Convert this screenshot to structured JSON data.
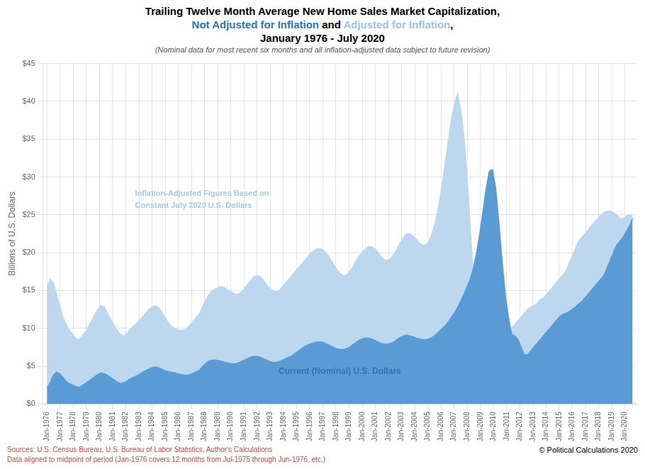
{
  "chart_data": {
    "type": "area",
    "title": [
      [
        {
          "text": "Trailing Twelve Month Average New Home Sales Market Capitalization,",
          "color": "#000000"
        }
      ],
      [
        {
          "text": "Not Adjusted for Inflation",
          "color": "#2E75B6"
        },
        {
          "text": " and ",
          "color": "#000000"
        },
        {
          "text": "Adjusted for Inflation",
          "color": "#9DC3E6"
        },
        {
          "text": ",",
          "color": "#000000"
        }
      ],
      [
        {
          "text": "January 1976 - July 2020",
          "color": "#000000"
        }
      ]
    ],
    "subtitle": {
      "text": "(Nominal data for most recent six months and all inflation-adjusted data subject to future revision)",
      "color": "#595959"
    },
    "y_label": "Billions of U.S. Dollars",
    "x": [
      1976.0,
      1976.2423,
      1976.4846,
      1976.7269,
      1976.9692,
      1977.2115,
      1977.4538,
      1977.6961,
      1977.9384,
      1978.1807,
      1978.423,
      1978.6653,
      1978.9076,
      1979.1499,
      1979.3922,
      1979.6345,
      1979.8768,
      1980.1191,
      1980.3614,
      1980.6037,
      1980.846,
      1981.0883,
      1981.3306,
      1981.5729,
      1981.8152,
      1982.0575,
      1982.2998,
      1982.5421,
      1982.7844,
      1983.0267,
      1983.269,
      1983.5113,
      1983.7536,
      1983.9959,
      1984.2382,
      1984.4805,
      1984.7228,
      1984.9651,
      1985.2074,
      1985.4497,
      1985.692,
      1985.9343,
      1986.1766,
      1986.4189,
      1986.6612,
      1986.9035,
      1987.1458,
      1987.3881,
      1987.6304,
      1987.8727,
      1988.115,
      1988.3573,
      1988.5996,
      1988.8419,
      1989.0842,
      1989.3265,
      1989.5688,
      1989.8111,
      1990.0534,
      1990.2957,
      1990.538,
      1990.7803,
      1991.0226,
      1991.2649,
      1991.5072,
      1991.7495,
      1991.9918,
      1992.2341,
      1992.4764,
      1992.7188,
      1992.9611,
      1993.2034,
      1993.4457,
      1993.688,
      1993.9303,
      1994.1726,
      1994.4149,
      1994.6572,
      1994.8995,
      1995.1418,
      1995.3841,
      1995.6264,
      1995.8687,
      1996.111,
      1996.3533,
      1996.5956,
      1996.8379,
      1997.0802,
      1997.3225,
      1997.5648,
      1997.8071,
      1998.0494,
      1998.2917,
      1998.534,
      1998.7763,
      1999.0186,
      1999.2609,
      1999.5032,
      1999.7455,
      1999.9878,
      2000.2301,
      2000.4724,
      2000.7147,
      2000.957,
      2001.1993,
      2001.4416,
      2001.6839,
      2001.9262,
      2002.1685,
      2002.4108,
      2002.6531,
      2002.8954,
      2003.1377,
      2003.38,
      2003.6223,
      2003.8646,
      2004.1069,
      2004.3492,
      2004.5915,
      2004.8338,
      2005.0761,
      2005.3184,
      2005.5607,
      2005.803,
      2006.0453,
      2006.2876,
      2006.5299,
      2006.7722,
      2007.0145,
      2007.2568,
      2007.4991,
      2007.7414,
      2007.9837,
      2008.226,
      2008.4683,
      2008.7106,
      2008.9529,
      2009.1952,
      2009.4375,
      2009.6798,
      2009.9221,
      2010.1644,
      2010.4067,
      2010.649,
      2010.8913,
      2011.1336,
      2011.3759,
      2011.6182,
      2011.8605,
      2012.1028,
      2012.3451,
      2012.5874,
      2012.8297,
      2013.072,
      2013.3143,
      2013.5566,
      2013.7989,
      2014.0412,
      2014.2835,
      2014.5258,
      2014.7681,
      2015.0104,
      2015.2527,
      2015.495,
      2015.7373,
      2015.9796,
      2016.2219,
      2016.4642,
      2016.7065,
      2016.9488,
      2017.1911,
      2017.4334,
      2017.6757,
      2017.918,
      2018.1603,
      2018.4026,
      2018.6449,
      2018.8872,
      2019.1295,
      2019.3718,
      2019.6141,
      2019.8564,
      2020.0987,
      2020.341,
      2020.5833
    ],
    "series": [
      {
        "color": "#BDD7EE",
        "values": [
          15.5,
          16.5,
          16.0,
          14.5,
          13.0,
          11.5,
          10.5,
          9.8,
          9.2,
          8.7,
          8.5,
          9.0,
          9.5,
          10.2,
          11.0,
          11.8,
          12.5,
          13.0,
          12.8,
          12.0,
          11.2,
          10.5,
          9.8,
          9.2,
          9.0,
          9.2,
          9.8,
          10.2,
          10.6,
          11.0,
          11.5,
          12.0,
          12.5,
          12.8,
          13.0,
          12.8,
          12.2,
          11.5,
          10.8,
          10.3,
          10.0,
          9.8,
          9.7,
          9.8,
          10.0,
          10.5,
          11.0,
          11.5,
          12.0,
          13.0,
          13.8,
          14.5,
          15.0,
          15.2,
          15.5,
          15.5,
          15.3,
          15.0,
          14.8,
          14.5,
          14.5,
          14.8,
          15.2,
          15.8,
          16.3,
          16.8,
          17.0,
          16.8,
          16.3,
          15.8,
          15.3,
          15.0,
          14.8,
          15.0,
          15.5,
          16.0,
          16.5,
          17.0,
          17.5,
          18.0,
          18.5,
          19.0,
          19.5,
          20.0,
          20.3,
          20.5,
          20.5,
          20.3,
          19.8,
          19.2,
          18.5,
          17.8,
          17.3,
          17.0,
          17.0,
          17.5,
          18.0,
          18.8,
          19.5,
          20.0,
          20.5,
          20.8,
          20.8,
          20.5,
          20.0,
          19.5,
          19.0,
          19.0,
          19.2,
          19.8,
          20.5,
          21.3,
          22.0,
          22.5,
          22.5,
          22.2,
          21.8,
          21.3,
          21.0,
          21.0,
          21.5,
          22.5,
          24.0,
          26.0,
          28.5,
          31.5,
          34.5,
          37.5,
          39.5,
          41.0,
          39.0,
          35.5,
          30.0,
          23.5,
          16.5,
          13.5,
          11.5,
          10.0,
          8.5,
          7.5,
          7.0,
          7.2,
          7.8,
          8.3,
          9.0,
          9.5,
          10.0,
          10.5,
          11.0,
          11.5,
          12.0,
          12.5,
          12.8,
          13.0,
          13.3,
          13.8,
          14.0,
          14.5,
          15.0,
          15.5,
          16.0,
          16.5,
          17.0,
          17.5,
          18.5,
          19.5,
          20.5,
          21.5,
          22.0,
          22.5,
          23.0,
          23.5,
          24.0,
          24.5,
          25.0,
          25.3,
          25.5,
          25.5,
          25.3,
          25.0,
          24.5,
          24.5,
          24.8,
          25.0,
          25.0
        ]
      },
      {
        "color": "#5B9BD5",
        "values": [
          2.1,
          2.8,
          3.8,
          4.2,
          4.0,
          3.5,
          3.0,
          2.7,
          2.5,
          2.3,
          2.2,
          2.4,
          2.7,
          3.0,
          3.3,
          3.6,
          3.9,
          4.1,
          4.0,
          3.8,
          3.5,
          3.2,
          2.9,
          2.7,
          2.8,
          3.0,
          3.3,
          3.5,
          3.7,
          3.9,
          4.2,
          4.4,
          4.6,
          4.8,
          4.9,
          4.8,
          4.6,
          4.4,
          4.3,
          4.2,
          4.1,
          4.0,
          3.9,
          3.8,
          3.8,
          3.9,
          4.1,
          4.3,
          4.5,
          5.0,
          5.4,
          5.7,
          5.8,
          5.8,
          5.7,
          5.6,
          5.5,
          5.4,
          5.3,
          5.3,
          5.4,
          5.6,
          5.8,
          6.0,
          6.2,
          6.3,
          6.3,
          6.2,
          6.0,
          5.8,
          5.6,
          5.5,
          5.5,
          5.6,
          5.8,
          6.0,
          6.2,
          6.4,
          6.7,
          7.0,
          7.3,
          7.6,
          7.8,
          8.0,
          8.1,
          8.2,
          8.2,
          8.1,
          7.9,
          7.7,
          7.5,
          7.3,
          7.2,
          7.2,
          7.3,
          7.5,
          7.8,
          8.1,
          8.4,
          8.6,
          8.7,
          8.7,
          8.6,
          8.4,
          8.2,
          8.0,
          7.9,
          7.9,
          8.0,
          8.2,
          8.5,
          8.8,
          9.0,
          9.1,
          9.0,
          8.9,
          8.7,
          8.6,
          8.5,
          8.5,
          8.6,
          8.8,
          9.1,
          9.5,
          9.9,
          10.3,
          10.8,
          11.4,
          12.0,
          12.8,
          13.6,
          14.5,
          15.5,
          16.5,
          18.0,
          20.0,
          22.5,
          25.5,
          28.5,
          30.8,
          31.0,
          28.5,
          24.0,
          19.0,
          14.5,
          11.5,
          9.2,
          9.0,
          8.5,
          7.5,
          6.5,
          6.5,
          7.0,
          7.5,
          8.0,
          8.5,
          9.0,
          9.5,
          10.0,
          10.5,
          11.0,
          11.5,
          11.8,
          12.0,
          12.2,
          12.5,
          12.8,
          13.2,
          13.5,
          14.0,
          14.5,
          15.0,
          15.5,
          16.0,
          16.5,
          17.0,
          18.0,
          19.0,
          20.0,
          21.0,
          21.5,
          22.0,
          22.8,
          23.5,
          24.5
        ]
      }
    ],
    "annotations": [
      {
        "text": "Inflation-Adjusted Figures Based on\nConstant July 2020 U.S. Dollars",
        "color": "#A8C8E8"
      },
      {
        "text": "Current (Nominal) U.S. Dollars",
        "color": "#2E75B6"
      }
    ],
    "xlim": [
      1975.7,
      2020.8833
    ],
    "xticks": [
      {
        "value": 1976,
        "label": "Jan-1976"
      },
      {
        "value": 1977,
        "label": "Jan-1977"
      },
      {
        "value": 1978,
        "label": "Jan-1978"
      },
      {
        "value": 1979,
        "label": "Jan-1979"
      },
      {
        "value": 1980,
        "label": "Jan-1980"
      },
      {
        "value": 1981,
        "label": "Jan-1981"
      },
      {
        "value": 1982,
        "label": "Jan-1982"
      },
      {
        "value": 1983,
        "label": "Jan-1983"
      },
      {
        "value": 1984,
        "label": "Jan-1984"
      },
      {
        "value": 1985,
        "label": "Jan-1985"
      },
      {
        "value": 1986,
        "label": "Jan-1986"
      },
      {
        "value": 1987,
        "label": "Jan-1987"
      },
      {
        "value": 1988,
        "label": "Jan-1988"
      },
      {
        "value": 1989,
        "label": "Jan-1989"
      },
      {
        "value": 1990,
        "label": "Jan-1990"
      },
      {
        "value": 1991,
        "label": "Jan-1991"
      },
      {
        "value": 1992,
        "label": "Jan-1992"
      },
      {
        "value": 1993,
        "label": "Jan-1993"
      },
      {
        "value": 1994,
        "label": "Jan-1994"
      },
      {
        "value": 1995,
        "label": "Jan-1995"
      },
      {
        "value": 1996,
        "label": "Jan-1996"
      },
      {
        "value": 1997,
        "label": "Jan-1997"
      },
      {
        "value": 1998,
        "label": "Jan-1998"
      },
      {
        "value": 1999,
        "label": "Jan-1999"
      },
      {
        "value": 2000,
        "label": "Jan-2000"
      },
      {
        "value": 2001,
        "label": "Jan-2001"
      },
      {
        "value": 2002,
        "label": "Jan-2002"
      },
      {
        "value": 2003,
        "label": "Jan-2003"
      },
      {
        "value": 2004,
        "label": "Jan-2004"
      },
      {
        "value": 2005,
        "label": "Jan-2005"
      },
      {
        "value": 2006,
        "label": "Jan-2006"
      },
      {
        "value": 2007,
        "label": "Jan-2007"
      },
      {
        "value": 2008,
        "label": "Jan-2008"
      },
      {
        "value": 2009,
        "label": "Jan-2009"
      },
      {
        "value": 2010,
        "label": "Jan-2010"
      },
      {
        "value": 2011,
        "label": "Jan-2011"
      },
      {
        "value": 2012,
        "label": "Jan-2012"
      },
      {
        "value": 2013,
        "label": "Jan-2013"
      },
      {
        "value": 2014,
        "label": "Jan-2014"
      },
      {
        "value": 2015,
        "label": "Jan-2015"
      },
      {
        "value": 2016,
        "label": "Jan-2016"
      },
      {
        "value": 2017,
        "label": "Jan-2017"
      },
      {
        "value": 2018,
        "label": "Jan-2018"
      },
      {
        "value": 2019,
        "label": "Jan-2019"
      },
      {
        "value": 2020,
        "label": "Jan-2020"
      }
    ],
    "ylim": [
      0,
      45
    ],
    "yticks": [
      {
        "value": 0,
        "label": "$0"
      },
      {
        "value": 5,
        "label": "$5"
      },
      {
        "value": 10,
        "label": "$10"
      },
      {
        "value": 15,
        "label": "$15"
      },
      {
        "value": 20,
        "label": "$20"
      },
      {
        "value": 25,
        "label": "$25"
      },
      {
        "value": 30,
        "label": "$30"
      },
      {
        "value": 35,
        "label": "$35"
      },
      {
        "value": 40,
        "label": "$40"
      },
      {
        "value": 45,
        "label": "$45"
      }
    ],
    "grid": true,
    "footer": [
      {
        "text": "Sources: U.S. Census Bureau, U.S. Bureau of Labor Statistics, Author's Calculations",
        "color": "#C0504D"
      },
      {
        "text": "Data aligned to midpoint of period (Jan-1976 covers 12 months from Jul-1975 through Jun-1976, etc.)",
        "color": "#C0504D"
      }
    ],
    "copyright": {
      "text": "© Political Calculations 2020",
      "color": "#000000"
    }
  }
}
